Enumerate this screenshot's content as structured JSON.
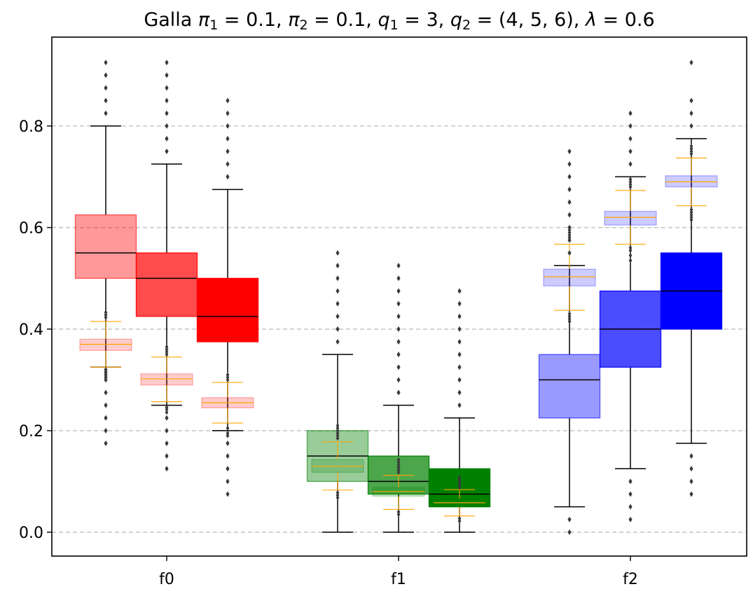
{
  "chart_data": {
    "type": "box",
    "title": "Galla π₁ = 0.1, π₂ = 0.1, q₁ = 3, q₂ = (4, 5, 6), λ = 0.6",
    "title_parts": [
      {
        "t": "Galla "
      },
      {
        "t": "π",
        "i": true
      },
      {
        "t": "1",
        "sub": true
      },
      {
        "t": " = 0.1,  "
      },
      {
        "t": "π",
        "i": true
      },
      {
        "t": "2",
        "sub": true
      },
      {
        "t": " = 0.1,  "
      },
      {
        "t": "q",
        "i": true
      },
      {
        "t": "1",
        "sub": true
      },
      {
        "t": " = 3,  "
      },
      {
        "t": "q",
        "i": true
      },
      {
        "t": "2",
        "sub": true
      },
      {
        "t": " = (4, 5, 6),  "
      },
      {
        "t": "λ",
        "i": true
      },
      {
        "t": " = 0.6"
      }
    ],
    "xlabel": "",
    "ylabel": "",
    "ylim": [
      -0.047,
      0.975
    ],
    "yticks": [
      0.0,
      0.2,
      0.4,
      0.6,
      0.8
    ],
    "ytick_labels": [
      "0.0",
      "0.2",
      "0.4",
      "0.6",
      "0.8"
    ],
    "grid": "horizontal dashed",
    "categories": [
      "f0",
      "f1",
      "f2"
    ],
    "series": [
      {
        "group": "f0",
        "color": "#ff0000",
        "opacity": 0.4,
        "whisker_low": 0.325,
        "q1": 0.5,
        "median": 0.55,
        "q3": 0.625,
        "whisker_high": 0.8,
        "outliers": [
          0.175,
          0.2,
          0.225,
          0.25,
          0.275,
          0.3,
          0.305,
          0.31,
          0.315,
          0.32,
          0.825,
          0.85,
          0.875,
          0.9,
          0.925
        ],
        "overlay": {
          "low": 0.325,
          "q1": 0.358,
          "mean": 0.37,
          "q3": 0.38,
          "high": 0.415,
          "outliers": [
            0.423,
            0.428,
            0.433
          ]
        }
      },
      {
        "group": "f0",
        "color": "#ff0000",
        "opacity": 0.7,
        "whisker_low": 0.25,
        "q1": 0.425,
        "median": 0.5,
        "q3": 0.55,
        "whisker_high": 0.725,
        "outliers": [
          0.125,
          0.15,
          0.175,
          0.2,
          0.225,
          0.75,
          0.775,
          0.8,
          0.825,
          0.85,
          0.875,
          0.9,
          0.925
        ],
        "overlay": {
          "low": 0.257,
          "q1": 0.29,
          "mean": 0.302,
          "q3": 0.312,
          "high": 0.345,
          "outliers": [
            0.236,
            0.242,
            0.246,
            0.35,
            0.355,
            0.36,
            0.365
          ]
        }
      },
      {
        "group": "f0",
        "color": "#ff0000",
        "opacity": 1.0,
        "whisker_low": 0.2,
        "q1": 0.375,
        "median": 0.425,
        "q3": 0.5,
        "whisker_high": 0.675,
        "outliers": [
          0.075,
          0.1,
          0.125,
          0.15,
          0.175,
          0.7,
          0.725,
          0.75,
          0.775,
          0.8,
          0.825,
          0.85
        ],
        "overlay": {
          "low": 0.215,
          "q1": 0.245,
          "mean": 0.255,
          "q3": 0.265,
          "high": 0.295,
          "outliers": [
            0.19,
            0.195,
            0.205,
            0.3,
            0.305,
            0.31
          ]
        }
      },
      {
        "group": "f1",
        "color": "#008000",
        "opacity": 0.4,
        "whisker_low": 0.0,
        "q1": 0.1,
        "median": 0.15,
        "q3": 0.2,
        "whisker_high": 0.35,
        "outliers": [
          0.375,
          0.4,
          0.425,
          0.45,
          0.475,
          0.5,
          0.525,
          0.55
        ],
        "overlay": {
          "low": 0.083,
          "q1": 0.118,
          "mean": 0.13,
          "q3": 0.143,
          "high": 0.178,
          "outliers": [
            0.068,
            0.073,
            0.078,
            0.185,
            0.19,
            0.195,
            0.2,
            0.205,
            0.21
          ]
        }
      },
      {
        "group": "f1",
        "color": "#008000",
        "opacity": 0.7,
        "whisker_low": 0.0,
        "q1": 0.075,
        "median": 0.1,
        "q3": 0.15,
        "whisker_high": 0.25,
        "outliers": [
          0.275,
          0.3,
          0.325,
          0.35,
          0.375,
          0.4,
          0.425,
          0.45,
          0.475,
          0.5,
          0.525
        ],
        "overlay": {
          "low": 0.045,
          "q1": 0.071,
          "mean": 0.08,
          "q3": 0.088,
          "high": 0.112,
          "outliers": [
            0.035,
            0.04,
            0.118,
            0.123,
            0.128,
            0.133,
            0.138,
            0.143
          ]
        }
      },
      {
        "group": "f1",
        "color": "#008000",
        "opacity": 1.0,
        "whisker_low": 0.0,
        "q1": 0.05,
        "median": 0.075,
        "q3": 0.125,
        "whisker_high": 0.225,
        "outliers": [
          0.25,
          0.275,
          0.3,
          0.325,
          0.35,
          0.375,
          0.4,
          0.425,
          0.45,
          0.475
        ],
        "overlay": {
          "low": 0.032,
          "q1": 0.05,
          "mean": 0.058,
          "q3": 0.066,
          "high": 0.084,
          "outliers": [
            0.022,
            0.027,
            0.088,
            0.093,
            0.098,
            0.103,
            0.108
          ]
        }
      },
      {
        "group": "f2",
        "color": "#0000ff",
        "opacity": 0.4,
        "whisker_low": 0.05,
        "q1": 0.225,
        "median": 0.3,
        "q3": 0.35,
        "whisker_high": 0.525,
        "outliers": [
          0.0,
          0.025,
          0.55,
          0.575,
          0.6,
          0.625,
          0.65,
          0.675,
          0.7,
          0.725,
          0.75
        ],
        "overlay": {
          "low": 0.437,
          "q1": 0.485,
          "mean": 0.503,
          "q3": 0.518,
          "high": 0.567,
          "outliers": [
            0.415,
            0.42,
            0.425,
            0.43,
            0.575,
            0.58,
            0.585,
            0.59,
            0.595,
            0.6
          ]
        }
      },
      {
        "group": "f2",
        "color": "#0000ff",
        "opacity": 0.7,
        "whisker_low": 0.125,
        "q1": 0.325,
        "median": 0.4,
        "q3": 0.475,
        "whisker_high": 0.7,
        "outliers": [
          0.025,
          0.05,
          0.075,
          0.1,
          0.725,
          0.75,
          0.775,
          0.8,
          0.825
        ],
        "overlay": {
          "low": 0.567,
          "q1": 0.605,
          "mean": 0.62,
          "q3": 0.632,
          "high": 0.673,
          "outliers": [
            0.535,
            0.545,
            0.555,
            0.56,
            0.68,
            0.685,
            0.69,
            0.695
          ]
        }
      },
      {
        "group": "f2",
        "color": "#0000ff",
        "opacity": 1.0,
        "whisker_low": 0.175,
        "q1": 0.4,
        "median": 0.475,
        "q3": 0.55,
        "whisker_high": 0.775,
        "outliers": [
          0.075,
          0.1,
          0.125,
          0.15,
          0.8,
          0.825,
          0.85,
          0.925
        ],
        "overlay": {
          "low": 0.643,
          "q1": 0.68,
          "mean": 0.69,
          "q3": 0.702,
          "high": 0.737,
          "outliers": [
            0.615,
            0.62,
            0.625,
            0.63,
            0.635,
            0.745,
            0.75,
            0.755,
            0.76
          ]
        }
      }
    ]
  }
}
